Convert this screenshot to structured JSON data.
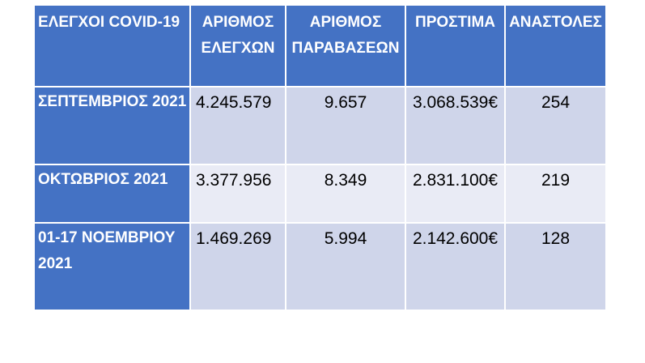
{
  "table": {
    "headers": [
      "ΕΛΕΓΧΟΙ COVID-19",
      "ΑΡΙΘΜΟΣ ΕΛΕΓΧΩΝ",
      "ΑΡΙΘΜΟΣ ΠΑΡΑΒΑΣΕΩΝ",
      "ΠΡΟΣΤΙΜΑ",
      "ΑΝΑΣΤΟΛΕΣ"
    ],
    "rows": [
      {
        "label": "ΣΕΠΤΕΜΒΡΙΟΣ 2021",
        "checks": "4.245.579",
        "violations": "9.657",
        "fines": "3.068.539€",
        "suspensions": "254"
      },
      {
        "label": "ΟΚΤΩΒΡΙΟΣ 2021",
        "checks": "3.377.956",
        "violations": "8.349",
        "fines": "2.831.100€",
        "suspensions": "219"
      },
      {
        "label": "01-17  ΝΟΕΜΒΡΙΟΥ 2021",
        "checks": "1.469.269",
        "violations": "5.994",
        "fines": "2.142.600€",
        "suspensions": "128"
      }
    ]
  },
  "colors": {
    "header_bg": "#4472c4",
    "row_odd_bg": "#cfd5ea",
    "row_even_bg": "#e9ebf5"
  }
}
